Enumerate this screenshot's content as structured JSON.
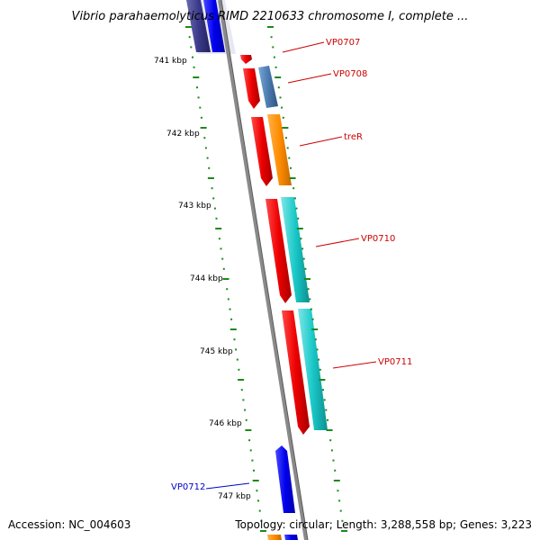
{
  "title": "Vibrio parahaemolyticus RIMD 2210633 chromosome I, complete ...",
  "accession": "Accession: NC_004603",
  "summary": "Topology: circular; Length: 3,288,558 bp; Genes: 3,223",
  "kbp_labels": [
    "741 kbp",
    "742 kbp",
    "743 kbp",
    "744 kbp",
    "745 kbp",
    "746 kbp",
    "747 kbp"
  ],
  "gene_labels": [
    {
      "id": "vp0707",
      "text": "VP0707",
      "color": "#cc0000"
    },
    {
      "id": "vp0708",
      "text": "VP0708",
      "color": "#cc0000"
    },
    {
      "id": "trer",
      "text": "treR",
      "color": "#cc0000"
    },
    {
      "id": "vp0710",
      "text": "VP0710",
      "color": "#cc0000"
    },
    {
      "id": "vp0711",
      "text": "VP0711",
      "color": "#cc0000"
    },
    {
      "id": "vp0712",
      "text": "VP0712",
      "color": "#0000cc"
    }
  ],
  "colors": {
    "backbone": "#8a8a8a",
    "tick": "#1a8a1a",
    "cds": "#ee0000",
    "blue_gene": "#0000ee",
    "navy_gene": "#3a3a8a",
    "steel_gene": "#4a7ab0",
    "orange_gene": "#ff8c00",
    "cyan_gene": "#19c8c8"
  }
}
